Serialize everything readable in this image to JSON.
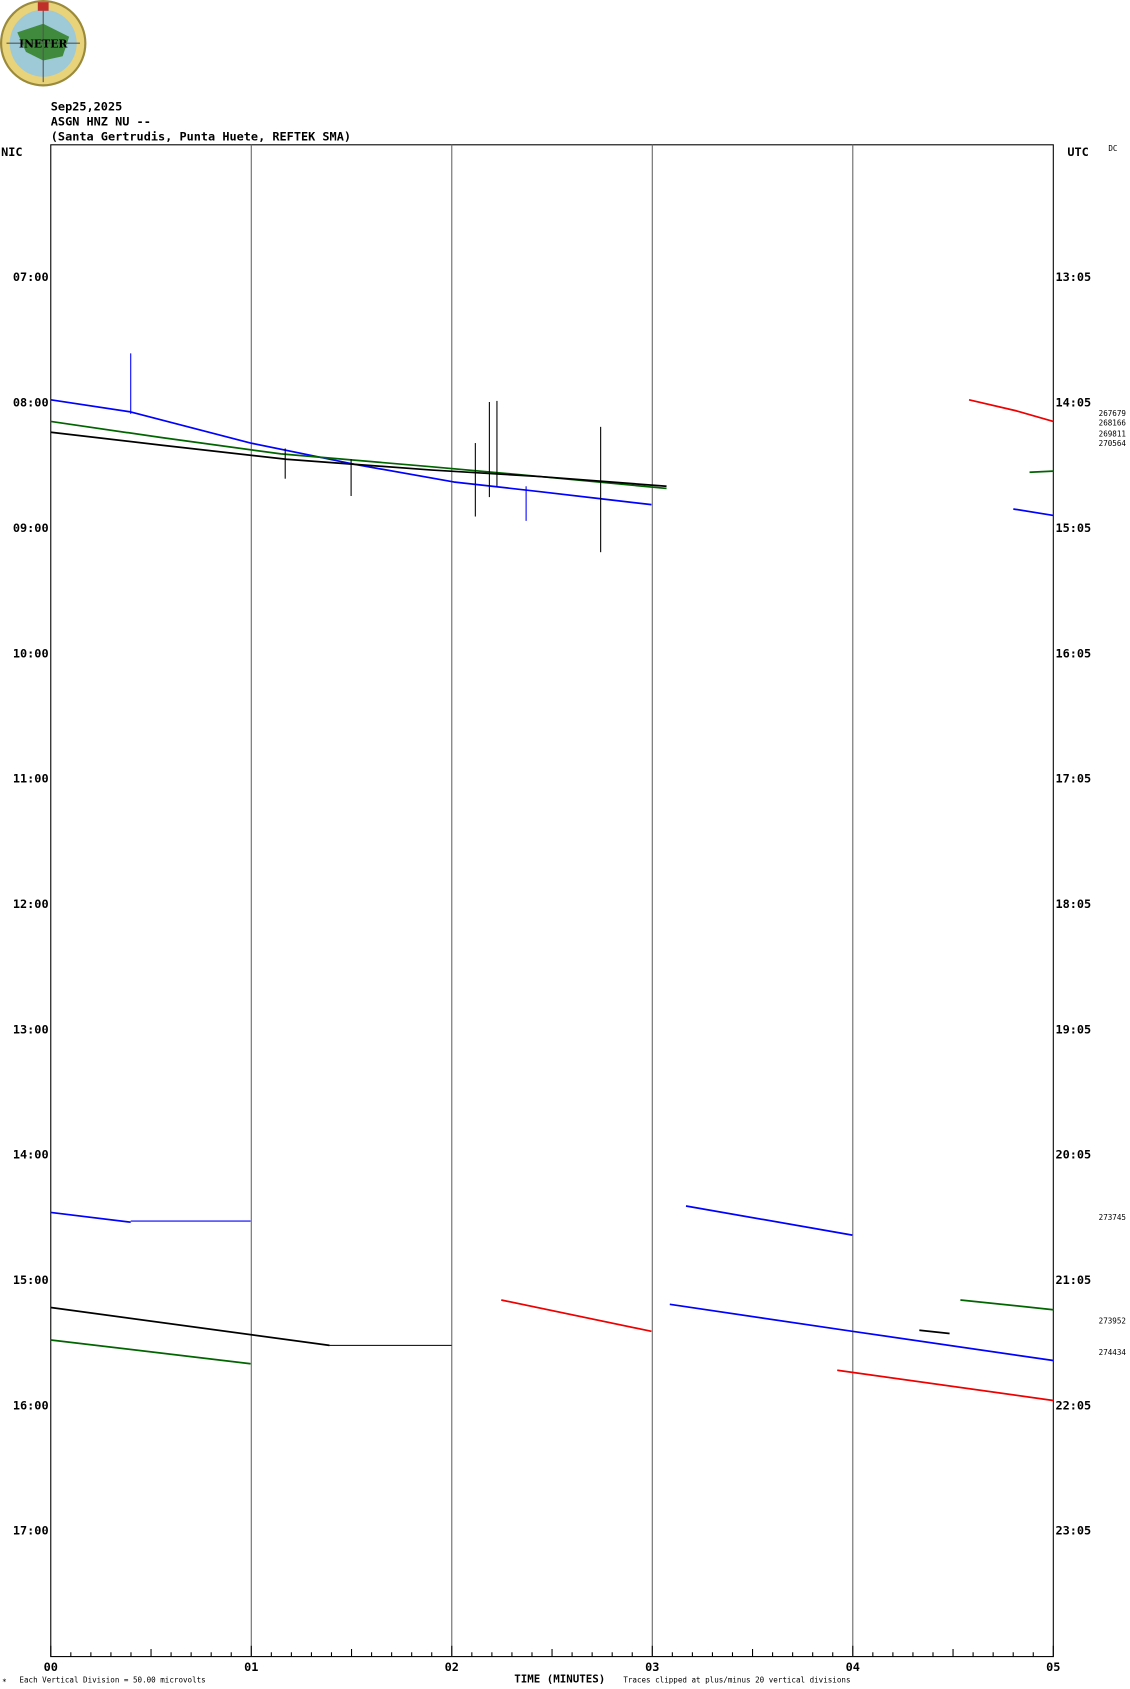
{
  "logo": "INETER",
  "header": {
    "date": "Sep25,2025",
    "station": "ASGN HNZ NU --",
    "location": "(Santa Gertrudis, Punta Huete, REFTEK SMA)"
  },
  "left_zone": "NIC",
  "right_zone": "UTC",
  "dc": "DC",
  "left_hours": [
    "07:00",
    "08:00",
    "09:00",
    "10:00",
    "11:00",
    "12:00",
    "13:00",
    "14:00",
    "15:00",
    "16:00",
    "17:00"
  ],
  "right_hours": [
    "13:05",
    "14:05",
    "15:05",
    "16:05",
    "17:05",
    "18:05",
    "19:05",
    "20:05",
    "21:05",
    "22:05",
    "23:05"
  ],
  "dc_values": [
    "267679",
    "268166",
    "269811",
    "270564",
    "273745",
    "273952",
    "274434"
  ],
  "x_labels": [
    "00",
    "01",
    "02",
    "03",
    "04",
    "05"
  ],
  "footer": {
    "scale": "Each Vertical Division =   50.00 microvolts",
    "axis_title": "TIME (MINUTES)",
    "clip_note": "Traces clipped at plus/minus 20 vertical divisions"
  }
}
